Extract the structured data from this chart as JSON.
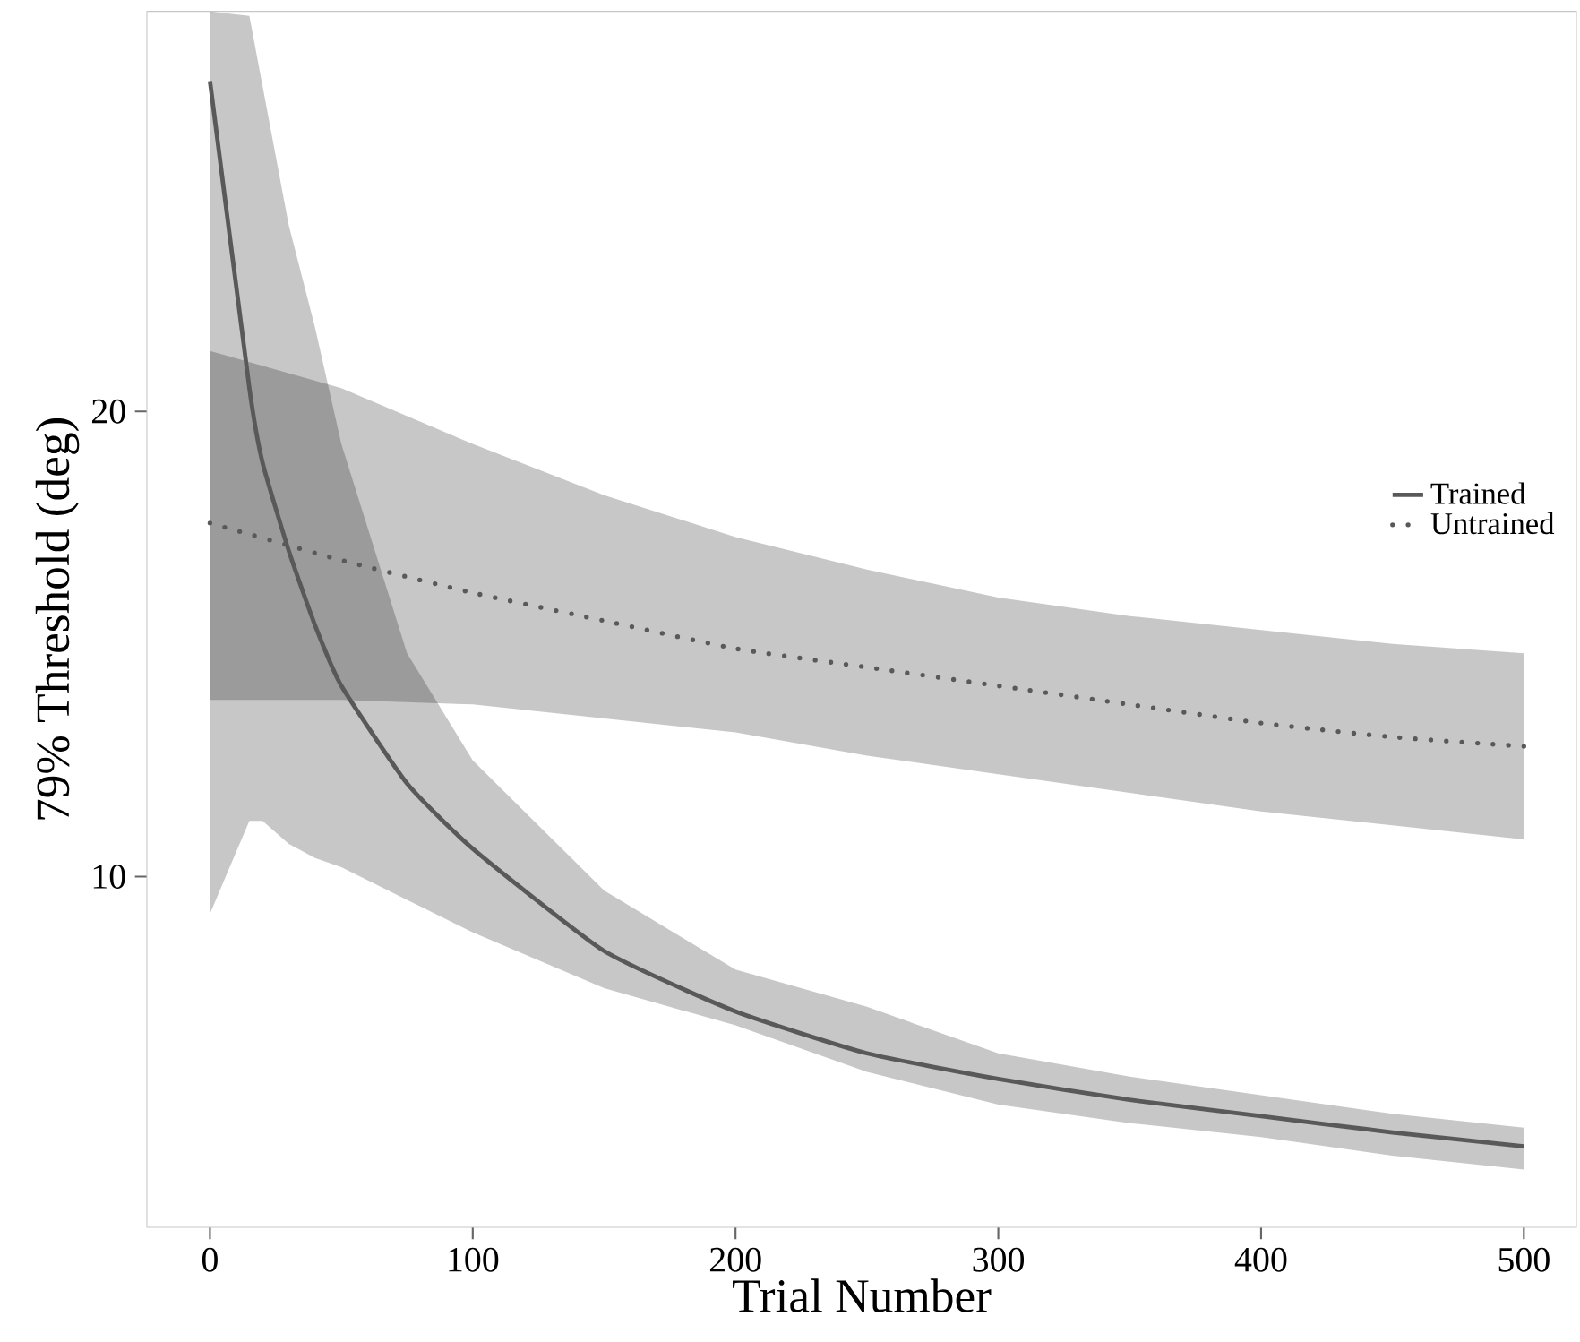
{
  "chart_data": {
    "type": "line",
    "xlabel": "Trial Number",
    "ylabel": "79% Threshold (deg)",
    "xlim": [
      -24,
      520
    ],
    "ylim": [
      2.46,
      28.6
    ],
    "xticks": [
      0,
      100,
      200,
      300,
      400,
      500
    ],
    "yticks": [
      10,
      20
    ],
    "legend": "right",
    "grid": false,
    "series": [
      {
        "name": "Trained",
        "color": "#595959",
        "line_style": "solid",
        "x": [
          0,
          15,
          20,
          30,
          40,
          50,
          75,
          100,
          150,
          200,
          250,
          300,
          350,
          400,
          450,
          500
        ],
        "values": [
          27.1,
          20.5,
          18.9,
          17.0,
          15.4,
          14.1,
          12.0,
          10.6,
          8.4,
          7.1,
          6.2,
          5.65,
          5.2,
          4.85,
          4.5,
          4.2
        ],
        "upper": [
          28.6,
          28.5,
          27.0,
          24.0,
          21.8,
          19.3,
          14.8,
          12.5,
          9.7,
          8.0,
          7.2,
          6.2,
          5.7,
          5.3,
          4.9,
          4.6
        ],
        "lower": [
          9.2,
          11.2,
          11.2,
          10.7,
          10.4,
          10.2,
          9.5,
          8.8,
          7.6,
          6.8,
          5.8,
          5.1,
          4.7,
          4.4,
          4.0,
          3.7
        ]
      },
      {
        "name": "Untrained",
        "color": "#595959",
        "line_style": "dotted",
        "x": [
          0,
          50,
          100,
          150,
          200,
          250,
          300,
          350,
          400,
          450,
          500
        ],
        "values": [
          17.6,
          16.8,
          16.1,
          15.5,
          14.9,
          14.5,
          14.1,
          13.7,
          13.3,
          13.0,
          12.8
        ],
        "upper": [
          21.3,
          20.5,
          19.3,
          18.2,
          17.3,
          16.6,
          16.0,
          15.6,
          15.3,
          15.0,
          14.8
        ],
        "lower": [
          13.8,
          13.8,
          13.7,
          13.4,
          13.1,
          12.6,
          12.2,
          11.8,
          11.4,
          11.1,
          10.8
        ]
      }
    ]
  }
}
